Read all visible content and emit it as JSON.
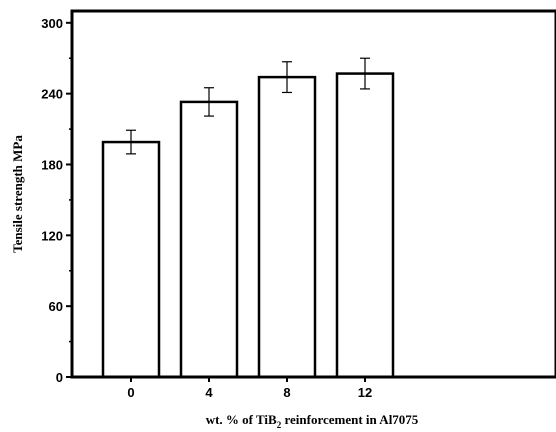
{
  "chart_data": {
    "type": "bar",
    "categories": [
      "0",
      "4",
      "8",
      "12"
    ],
    "values": [
      199,
      233,
      254,
      257
    ],
    "errors": [
      10,
      12,
      13,
      13
    ],
    "ylim": [
      0,
      310
    ],
    "yticks": [
      0,
      60,
      120,
      180,
      240,
      300
    ],
    "ylabel": "Tensile strength MPa",
    "xlabel": {
      "prefix": "wt. % of TiB",
      "subscript": "2",
      "suffix": " reinforcement in Al7075"
    },
    "bar_fill": "#ffffff",
    "bar_stroke": "#000000",
    "grid": false,
    "legend": "none"
  }
}
